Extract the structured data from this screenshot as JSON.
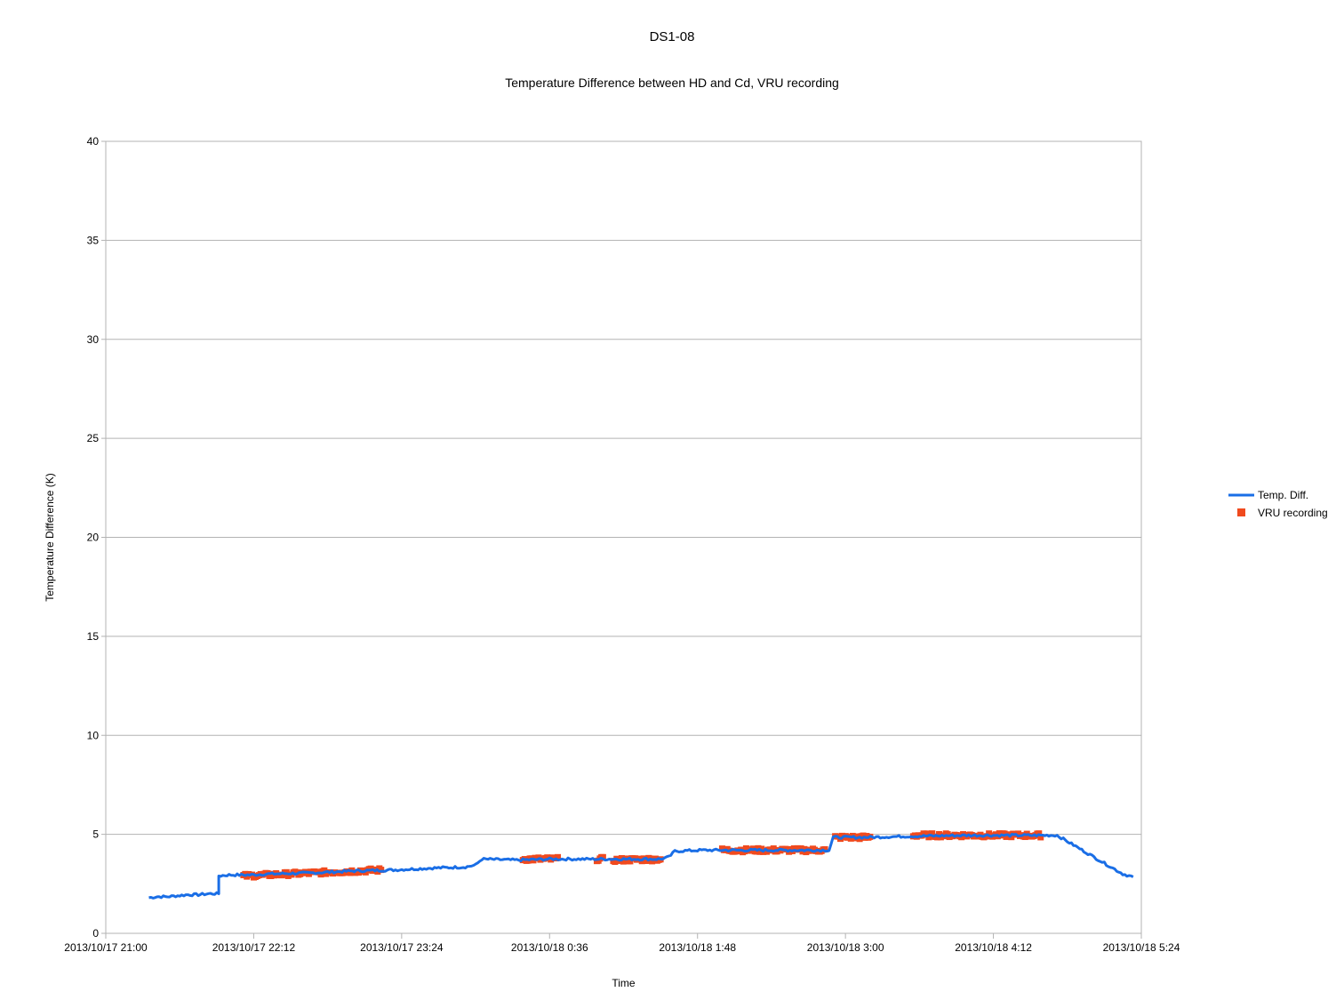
{
  "chart_data": {
    "type": "line",
    "title": "DS1-08",
    "subtitle": "Temperature Difference between HD and Cd, VRU recording",
    "xlabel": "Time",
    "ylabel": "Temperature Difference (K)",
    "ylim": [
      0,
      40
    ],
    "yticks": [
      0,
      5,
      10,
      15,
      20,
      25,
      30,
      35,
      40
    ],
    "xlim": [
      "2013/10/17 21:00",
      "2013/10/18 5:24"
    ],
    "xticks": [
      "2013/10/17 21:00",
      "2013/10/17 22:12",
      "2013/10/17 23:24",
      "2013/10/18 0:36",
      "2013/10/18 1:48",
      "2013/10/18 3:00",
      "2013/10/18 4:12",
      "2013/10/18 5:24"
    ],
    "grid": true,
    "legend_position": "right",
    "colors": {
      "line": "#1a6ee6",
      "markers": "#f04a1e",
      "grid": "#b3b3b3"
    },
    "series": [
      {
        "name": "Temp. Diff.",
        "kind": "line",
        "points": [
          [
            "2013/10/17 21:21",
            1.8
          ],
          [
            "2013/10/17 21:25",
            1.85
          ],
          [
            "2013/10/17 21:30",
            1.85
          ],
          [
            "2013/10/17 21:35",
            1.9
          ],
          [
            "2013/10/17 21:40",
            1.95
          ],
          [
            "2013/10/17 21:45",
            1.95
          ],
          [
            "2013/10/17 21:50",
            2.0
          ],
          [
            "2013/10/17 21:55",
            2.0
          ],
          [
            "2013/10/17 21:55",
            2.9
          ],
          [
            "2013/10/17 22:00",
            2.95
          ],
          [
            "2013/10/17 22:10",
            2.95
          ],
          [
            "2013/10/17 22:20",
            3.0
          ],
          [
            "2013/10/17 22:40",
            3.05
          ],
          [
            "2013/10/17 23:00",
            3.15
          ],
          [
            "2013/10/17 23:20",
            3.2
          ],
          [
            "2013/10/17 23:40",
            3.3
          ],
          [
            "2013/10/17 23:55",
            3.35
          ],
          [
            "2013/10/18 0:00",
            3.45
          ],
          [
            "2013/10/18 0:03",
            3.75
          ],
          [
            "2013/10/18 0:20",
            3.7
          ],
          [
            "2013/10/18 0:36",
            3.75
          ],
          [
            "2013/10/18 1:00",
            3.75
          ],
          [
            "2013/10/18 1:30",
            3.75
          ],
          [
            "2013/10/18 1:34",
            3.85
          ],
          [
            "2013/10/18 1:37",
            4.15
          ],
          [
            "2013/10/18 1:50",
            4.2
          ],
          [
            "2013/10/18 2:15",
            4.2
          ],
          [
            "2013/10/18 2:45",
            4.2
          ],
          [
            "2013/10/18 2:52",
            4.2
          ],
          [
            "2013/10/18 2:54",
            4.85
          ],
          [
            "2013/10/18 3:10",
            4.85
          ],
          [
            "2013/10/18 3:30",
            4.9
          ],
          [
            "2013/10/18 4:00",
            4.95
          ],
          [
            "2013/10/18 4:30",
            4.95
          ],
          [
            "2013/10/18 4:43",
            4.95
          ],
          [
            "2013/10/18 4:52",
            4.4
          ],
          [
            "2013/10/18 5:01",
            3.85
          ],
          [
            "2013/10/18 5:10",
            3.3
          ],
          [
            "2013/10/18 5:15",
            3.0
          ],
          [
            "2013/10/18 5:20",
            2.85
          ]
        ]
      },
      {
        "name": "VRU recording",
        "kind": "markers",
        "segments": [
          {
            "start": "2013/10/17 22:07",
            "end": "2013/10/17 23:14",
            "from": 2.9,
            "to": 3.2
          },
          {
            "start": "2013/10/18 0:23",
            "end": "2013/10/18 0:40",
            "from": 3.75,
            "to": 3.75
          },
          {
            "start": "2013/10/18 0:59",
            "end": "2013/10/18 1:02",
            "from": 3.75,
            "to": 3.75
          },
          {
            "start": "2013/10/18 1:07",
            "end": "2013/10/18 1:30",
            "from": 3.7,
            "to": 3.75
          },
          {
            "start": "2013/10/18 2:00",
            "end": "2013/10/18 2:50",
            "from": 4.2,
            "to": 4.2
          },
          {
            "start": "2013/10/18 2:55",
            "end": "2013/10/18 3:12",
            "from": 4.85,
            "to": 4.85
          },
          {
            "start": "2013/10/18 3:33",
            "end": "2013/10/18 4:35",
            "from": 4.95,
            "to": 4.95
          }
        ]
      }
    ]
  }
}
